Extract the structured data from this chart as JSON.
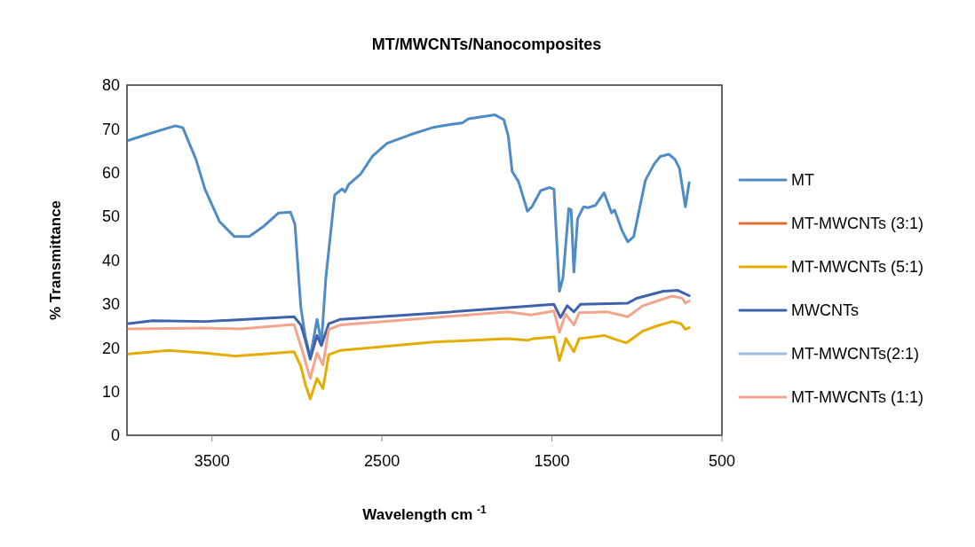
{
  "chart_data": {
    "type": "line",
    "title": "MT/MWCNTs/Nanocomposites",
    "xlabel": "Wavelength cm $^{-1}$",
    "ylabel": "% Transmittance",
    "xlim": [
      4000,
      500
    ],
    "xticks": [
      3500,
      2500,
      1500,
      500
    ],
    "ylim": [
      0,
      80
    ],
    "yticks": [
      0,
      10,
      20,
      30,
      40,
      50,
      60,
      70,
      80
    ],
    "grid": false,
    "legend": "right",
    "marker": "none",
    "line_style": "solid",
    "series": [
      {
        "name": "MT",
        "color": "#4f8bc4",
        "x": [
          3990,
          3885,
          3767,
          3715,
          3672,
          3594,
          3542,
          3455,
          3368,
          3281,
          3194,
          3108,
          3038,
          3012,
          2977,
          2951,
          2922,
          2882,
          2856,
          2830,
          2778,
          2734,
          2717,
          2696,
          2627,
          2557,
          2470,
          2331,
          2193,
          2147,
          2026,
          1991,
          1835,
          1783,
          1757,
          1734,
          1696,
          1644,
          1618,
          1566,
          1514,
          1488,
          1456,
          1435,
          1401,
          1387,
          1371,
          1349,
          1314,
          1288,
          1245,
          1193,
          1149,
          1132,
          1088,
          1054,
          1019,
          950,
          898,
          863,
          811,
          776,
          750,
          715,
          693
        ],
        "values": [
          67.4,
          68.7,
          70.1,
          70.7,
          70.3,
          63.0,
          56.3,
          48.8,
          45.4,
          45.4,
          47.8,
          50.8,
          51.0,
          48.2,
          29.2,
          22.5,
          17.8,
          26.5,
          21.1,
          36.0,
          54.9,
          56.3,
          55.6,
          57.3,
          59.6,
          63.7,
          66.7,
          68.7,
          70.4,
          70.7,
          71.4,
          72.3,
          73.2,
          72.1,
          68.4,
          60.3,
          57.9,
          51.2,
          52.2,
          55.9,
          56.6,
          56.2,
          32.9,
          36.0,
          51.8,
          51.5,
          37.3,
          49.5,
          52.2,
          52.0,
          52.5,
          55.4,
          50.8,
          51.5,
          46.8,
          44.2,
          45.4,
          58.3,
          62.0,
          63.7,
          64.2,
          63.0,
          61.0,
          52.2,
          57.7
        ]
      },
      {
        "name": "MT-MWCNTs (3:1)",
        "color": "#e07030"
      },
      {
        "name": "MT-MWCNTs (5:1)",
        "color": "#e6ac00",
        "x": [
          3990,
          3755,
          3537,
          3368,
          3017,
          2977,
          2951,
          2922,
          2882,
          2847,
          2813,
          2744,
          2193,
          1762,
          1644,
          1610,
          1486,
          1456,
          1418,
          1371,
          1340,
          1193,
          1140,
          1062,
          966,
          898,
          793,
          741,
          715,
          693
        ],
        "values": [
          18.6,
          19.4,
          18.8,
          18.1,
          19.1,
          15.7,
          11.7,
          8.3,
          13.0,
          10.7,
          18.4,
          19.4,
          21.3,
          22.1,
          21.7,
          22.1,
          22.5,
          17.1,
          22.1,
          19.1,
          22.1,
          22.8,
          22.1,
          21.1,
          23.8,
          24.8,
          26.0,
          25.5,
          24.2,
          24.6
        ]
      },
      {
        "name": "MWCNTs",
        "color": "#3f62ac",
        "x": [
          3990,
          3849,
          3537,
          3017,
          2977,
          2951,
          2922,
          2882,
          2856,
          2813,
          2744,
          2193,
          1488,
          1450,
          1410,
          1371,
          1332,
          1054,
          1002,
          845,
          759,
          693
        ],
        "values": [
          25.5,
          26.2,
          26.0,
          27.1,
          25.2,
          21.8,
          17.4,
          22.8,
          20.5,
          25.5,
          26.5,
          27.9,
          29.9,
          26.9,
          29.6,
          28.2,
          29.9,
          30.2,
          31.3,
          32.9,
          33.1,
          31.9
        ]
      },
      {
        "name": "MT-MWCNTs(2:1)",
        "color": "#9dbde2"
      },
      {
        "name": "MT-MWCNTs (1:1)",
        "color": "#f2a58c",
        "x": [
          3990,
          3537,
          3333,
          3017,
          2972,
          2922,
          2882,
          2847,
          2813,
          2744,
          2193,
          1762,
          1623,
          1488,
          1456,
          1420,
          1371,
          1340,
          1177,
          1054,
          966,
          793,
          733,
          715,
          693
        ],
        "values": [
          24.3,
          24.5,
          24.3,
          25.3,
          19.8,
          13.0,
          18.8,
          16.1,
          24.2,
          25.2,
          26.9,
          28.2,
          27.5,
          28.4,
          23.5,
          27.7,
          25.2,
          28.0,
          28.2,
          27.1,
          29.6,
          31.8,
          31.3,
          30.2,
          30.7
        ]
      }
    ]
  }
}
